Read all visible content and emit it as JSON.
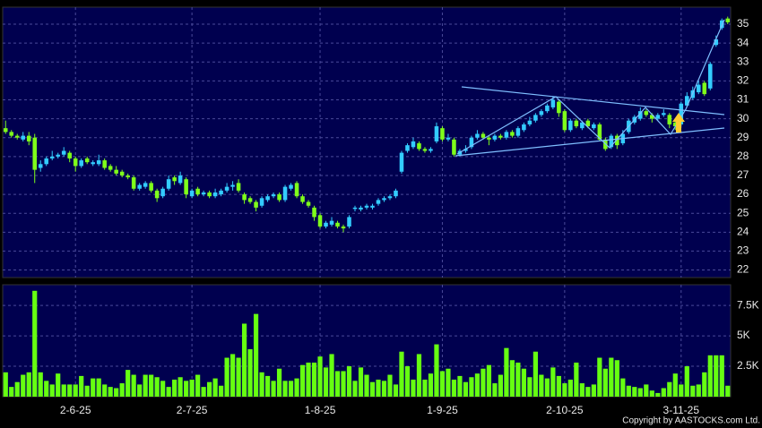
{
  "chart_data": [
    {
      "type": "candlestick",
      "categories": [
        null,
        null,
        null,
        null,
        null,
        null,
        null,
        null,
        null,
        null,
        null,
        null,
        "2-6-25",
        null,
        null,
        null,
        null,
        null,
        null,
        null,
        null,
        null,
        null,
        null,
        null,
        null,
        null,
        null,
        null,
        null,
        null,
        null,
        "2-7-25",
        null,
        null,
        null,
        null,
        null,
        null,
        null,
        null,
        null,
        null,
        null,
        null,
        null,
        null,
        null,
        null,
        null,
        null,
        null,
        null,
        null,
        "1-8-25",
        null,
        null,
        null,
        null,
        null,
        null,
        null,
        null,
        null,
        null,
        null,
        null,
        null,
        null,
        null,
        null,
        null,
        null,
        null,
        null,
        "1-9-25",
        null,
        null,
        null,
        null,
        null,
        null,
        null,
        null,
        null,
        null,
        null,
        null,
        null,
        null,
        null,
        null,
        null,
        null,
        null,
        null,
        "2-10-25",
        null,
        null,
        null,
        null,
        null,
        null,
        null,
        null,
        null,
        null,
        null,
        null,
        null,
        null,
        null,
        null,
        null,
        null,
        null,
        "3-11-25",
        null,
        null,
        null,
        null,
        null,
        null,
        null,
        null
      ],
      "open": [
        29.5,
        29.3,
        29.1,
        28.9,
        29.1,
        29.0,
        27.4,
        27.6,
        27.9,
        28.0,
        28.1,
        28.2,
        27.9,
        27.5,
        27.9,
        27.6,
        27.6,
        27.8,
        27.5,
        27.3,
        27.2,
        27.0,
        26.9,
        26.3,
        26.4,
        26.6,
        26.2,
        25.9,
        26.3,
        26.9,
        26.6,
        26.8,
        25.9,
        26.3,
        26.0,
        26.1,
        25.9,
        26.0,
        26.2,
        26.4,
        26.6,
        26.0,
        25.8,
        25.6,
        25.4,
        25.7,
        25.9,
        26.0,
        25.7,
        26.3,
        26.6,
        25.9,
        25.6,
        25.3,
        24.9,
        24.3,
        24.4,
        24.5,
        24.3,
        24.3,
        25.3,
        25.2,
        25.3,
        25.3,
        25.5,
        25.7,
        25.8,
        25.9,
        27.2,
        28.3,
        28.5,
        28.7,
        28.4,
        28.3,
        28.8,
        29.5,
        28.9,
        28.9,
        28.1,
        28.3,
        28.5,
        29.0,
        29.2,
        29.0,
        28.9,
        29.1,
        29.0,
        29.3,
        29.1,
        29.4,
        29.7,
        29.9,
        30.2,
        30.4,
        30.6,
        30.9,
        30.4,
        29.4,
        29.9,
        29.5,
        29.9,
        29.5,
        29.7,
        28.9,
        28.5,
        29.1,
        28.7,
        29.3,
        29.8,
        30.0,
        30.4,
        30.2,
        30.0,
        30.2,
        30.2,
        29.8,
        29.7,
        30.7,
        31.1,
        31.4,
        31.9,
        31.6,
        33.9,
        34.8,
        35.3
      ],
      "high": [
        29.9,
        29.4,
        29.2,
        29.3,
        29.3,
        29.2,
        27.8,
        28.0,
        28.3,
        28.2,
        28.5,
        28.3,
        28.0,
        27.9,
        28.0,
        27.8,
        28.1,
        27.9,
        27.6,
        27.5,
        27.3,
        27.1,
        27.0,
        26.6,
        26.7,
        26.7,
        26.3,
        26.4,
        27.0,
        27.0,
        27.2,
        26.9,
        26.3,
        26.4,
        26.2,
        26.2,
        26.3,
        26.3,
        26.6,
        26.7,
        26.8,
        26.1,
        25.9,
        25.7,
        25.9,
        26.0,
        26.1,
        26.1,
        26.5,
        26.6,
        26.7,
        26.0,
        25.7,
        25.4,
        25.0,
        24.6,
        24.8,
        24.6,
        24.4,
        24.9,
        25.4,
        25.4,
        25.5,
        25.5,
        25.8,
        25.9,
        26.0,
        26.3,
        28.3,
        28.7,
        29.0,
        28.8,
        28.5,
        28.5,
        29.8,
        29.6,
        29.2,
        29.0,
        28.4,
        28.6,
        29.1,
        29.4,
        29.3,
        29.1,
        29.2,
        29.2,
        29.4,
        29.4,
        29.6,
        29.8,
        30.1,
        30.3,
        30.5,
        30.8,
        31.2,
        31.0,
        30.5,
        30.0,
        30.0,
        29.9,
        30.0,
        29.8,
        29.8,
        29.0,
        29.2,
        29.2,
        29.4,
        30.0,
        30.2,
        30.6,
        30.5,
        30.3,
        30.3,
        30.5,
        30.3,
        29.9,
        30.9,
        31.4,
        31.7,
        32.0,
        32.0,
        33.0,
        34.4,
        35.3,
        35.4
      ],
      "low": [
        29.2,
        29.0,
        28.9,
        28.8,
        28.6,
        26.6,
        27.2,
        27.5,
        27.8,
        27.9,
        28.0,
        27.7,
        27.2,
        27.4,
        27.6,
        27.5,
        27.5,
        27.3,
        27.2,
        27.0,
        26.9,
        26.8,
        26.2,
        26.2,
        26.3,
        26.1,
        25.6,
        25.8,
        26.2,
        26.5,
        26.5,
        25.8,
        25.8,
        25.9,
        25.9,
        25.8,
        25.8,
        25.9,
        26.1,
        26.2,
        26.1,
        25.5,
        25.5,
        25.1,
        25.3,
        25.6,
        25.8,
        25.6,
        25.6,
        26.2,
        25.8,
        25.5,
        25.3,
        24.6,
        24.2,
        24.2,
        24.3,
        24.2,
        24.0,
        24.2,
        25.1,
        25.1,
        25.2,
        25.2,
        25.4,
        25.6,
        25.7,
        25.8,
        27.1,
        28.2,
        28.4,
        28.3,
        28.2,
        28.2,
        28.7,
        28.8,
        28.8,
        28.0,
        28.0,
        28.2,
        28.4,
        28.9,
        28.9,
        28.6,
        28.8,
        28.9,
        28.9,
        29.0,
        29.0,
        29.3,
        29.6,
        29.8,
        30.1,
        30.3,
        30.5,
        30.1,
        29.3,
        29.3,
        29.5,
        29.4,
        29.5,
        29.4,
        28.8,
        28.3,
        28.4,
        28.4,
        28.6,
        29.2,
        29.7,
        29.9,
        30.1,
        29.8,
        29.9,
        30.1,
        29.5,
        29.4,
        29.6,
        30.6,
        31.0,
        31.3,
        31.2,
        31.5,
        33.8,
        34.7,
        35.0
      ],
      "close": [
        29.3,
        29.1,
        29.0,
        29.1,
        28.8,
        27.3,
        27.6,
        27.9,
        28.0,
        28.1,
        28.3,
        27.9,
        27.5,
        27.8,
        27.7,
        27.7,
        27.8,
        27.4,
        27.3,
        27.1,
        27.0,
        26.9,
        26.3,
        26.5,
        26.6,
        26.2,
        25.8,
        26.3,
        26.8,
        26.7,
        27.0,
        26.0,
        26.2,
        26.0,
        26.1,
        25.9,
        26.1,
        26.2,
        26.4,
        26.5,
        26.2,
        25.7,
        25.6,
        25.3,
        25.8,
        25.9,
        26.0,
        25.7,
        26.4,
        26.5,
        25.9,
        25.6,
        25.4,
        24.8,
        24.3,
        24.5,
        24.6,
        24.3,
        24.2,
        24.8,
        25.3,
        25.3,
        25.4,
        25.4,
        25.7,
        25.8,
        25.9,
        26.2,
        28.2,
        28.6,
        28.8,
        28.4,
        28.3,
        28.4,
        29.6,
        28.9,
        29.0,
        28.1,
        28.3,
        28.4,
        29.0,
        29.2,
        29.0,
        28.9,
        29.1,
        29.0,
        29.3,
        29.1,
        29.5,
        29.7,
        29.9,
        30.2,
        30.4,
        30.7,
        31.0,
        30.3,
        29.4,
        29.9,
        29.6,
        29.8,
        29.6,
        29.7,
        28.9,
        28.4,
        29.1,
        28.6,
        29.2,
        29.9,
        30.1,
        30.4,
        30.2,
        30.0,
        30.2,
        30.3,
        29.7,
        29.6,
        30.8,
        31.2,
        31.5,
        31.8,
        31.3,
        32.9,
        34.2,
        35.2,
        35.1
      ],
      "up_color": "#33ccff",
      "down_color": "#7fff1a",
      "ylim": [
        21.6,
        35.9
      ],
      "yticks": [
        22,
        23,
        24,
        25,
        26,
        27,
        28,
        29,
        30,
        31,
        32,
        33,
        34,
        35
      ],
      "grid": true
    },
    {
      "type": "bar",
      "values": [
        2000,
        800,
        1200,
        1800,
        2000,
        8700,
        2000,
        1300,
        1000,
        1900,
        1000,
        1000,
        1000,
        1700,
        900,
        1500,
        1500,
        1000,
        800,
        700,
        1100,
        2200,
        1800,
        1000,
        1800,
        1800,
        1600,
        1300,
        800,
        1400,
        1600,
        1300,
        1400,
        1800,
        800,
        1200,
        1500,
        900,
        3200,
        3500,
        3200,
        6000,
        3900,
        6800,
        2000,
        1700,
        1300,
        2300,
        1300,
        1300,
        1500,
        2600,
        2800,
        2800,
        3300,
        2400,
        3500,
        2100,
        2100,
        2500,
        1300,
        2400,
        1800,
        1200,
        1400,
        1300,
        1800,
        1000,
        3700,
        2500,
        1400,
        3500,
        1400,
        1900,
        4300,
        2100,
        2300,
        1400,
        1700,
        1200,
        1600,
        1900,
        2300,
        2600,
        1100,
        1800,
        4000,
        3000,
        2800,
        2300,
        1600,
        3700,
        1800,
        1500,
        2400,
        1700,
        1100,
        1400,
        2800,
        1100,
        800,
        1000,
        3200,
        2300,
        3200,
        3000,
        1500,
        900,
        800,
        700,
        1000,
        500,
        300,
        700,
        1200,
        1900,
        1000,
        2500,
        900,
        1000,
        2000,
        3400,
        3400,
        3400,
        900
      ],
      "color": "#66ff11",
      "ylim": [
        0,
        9200
      ],
      "yticks": [
        {
          "value": 2500,
          "label": "2.5K"
        },
        {
          "value": 5000,
          "label": "5K"
        },
        {
          "value": 7500,
          "label": "7.5K"
        }
      ],
      "grid": true
    }
  ],
  "copyright": "Copyright by AASTOCKS.com Ltd."
}
